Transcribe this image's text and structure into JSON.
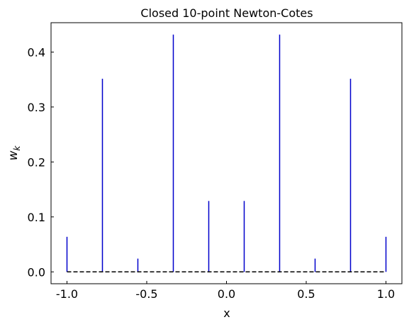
{
  "chart_data": {
    "type": "stem",
    "title": "Closed 10-point Newton-Cotes",
    "xlabel": "x",
    "ylabel": {
      "base": "w",
      "subscript": "k"
    },
    "x": [
      -1,
      -0.7778,
      -0.5556,
      -0.3333,
      -0.1111,
      0.1111,
      0.3333,
      0.5556,
      0.7778,
      1
    ],
    "values": [
      0.0638,
      0.3514,
      0.0241,
      0.4318,
      0.129,
      0.129,
      0.4318,
      0.0241,
      0.3514,
      0.0638
    ],
    "color": "#0000cc",
    "baseline": 0,
    "baseline_color": "#000000",
    "xlim": [
      -1.1,
      1.1
    ],
    "xticks": [
      -1.0,
      -0.5,
      0.0,
      0.5,
      1.0
    ],
    "ylim": [
      -0.0216,
      0.4534
    ],
    "yticks": [
      0.0,
      0.1,
      0.2,
      0.3,
      0.4
    ]
  }
}
